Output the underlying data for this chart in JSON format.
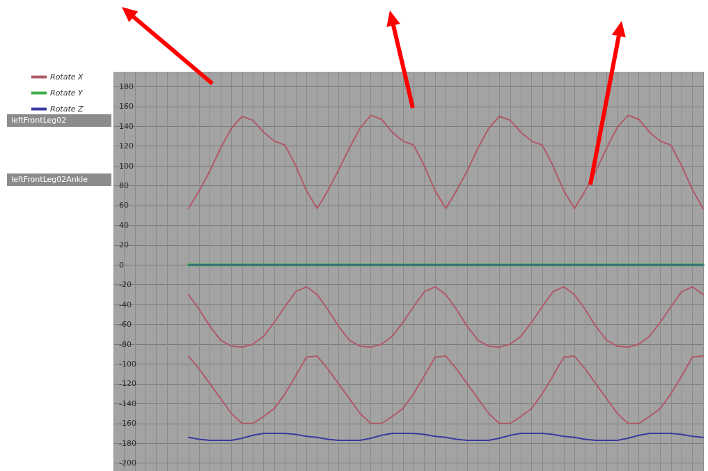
{
  "chart_data": {
    "type": "line",
    "categories": [
      null,
      null,
      null,
      null,
      null,
      null,
      null,
      null,
      null,
      null,
      null,
      null,
      null,
      null,
      null,
      null,
      null,
      null,
      null,
      null,
      null,
      null,
      null,
      null,
      null,
      null,
      null,
      null,
      null,
      null,
      null,
      null,
      null,
      null,
      null,
      null,
      null,
      null,
      null,
      null,
      null,
      null,
      null,
      null,
      null,
      null,
      null,
      null,
      null,
      null,
      null,
      null,
      null,
      null,
      null,
      null
    ],
    "series": [
      {
        "name": "Rotate X",
        "color": "#b05a68",
        "values": [
          null,
          null,
          null,
          null,
          null,
          null,
          null,
          57,
          75,
          95,
          118,
          138,
          150,
          146,
          134,
          125,
          121,
          100,
          75,
          57,
          75,
          96,
          118,
          138,
          151,
          147,
          134,
          125,
          121,
          100,
          75,
          57,
          75,
          95,
          118,
          138,
          150,
          146,
          134,
          125,
          121,
          100,
          75,
          57,
          75,
          95,
          118,
          139,
          151,
          147,
          134,
          125,
          121,
          100,
          76,
          57
        ]
      },
      {
        "color": "#b05a68",
        "values": [
          null,
          null,
          null,
          null,
          null,
          null,
          null,
          -30,
          -45,
          -62,
          -76,
          -82,
          -83,
          -80,
          -72,
          -58,
          -42,
          -27,
          -22,
          -30,
          -45,
          -62,
          -76,
          -82,
          -83,
          -80,
          -72,
          -58,
          -42,
          -27,
          -22,
          -30,
          -45,
          -62,
          -76,
          -82,
          -83,
          -80,
          -72,
          -58,
          -42,
          -27,
          -22,
          -30,
          -45,
          -62,
          -76,
          -82,
          -83,
          -80,
          -72,
          -58,
          -42,
          -27,
          -22,
          -30
        ]
      },
      {
        "color": "#b05a68",
        "values": [
          null,
          null,
          null,
          null,
          null,
          null,
          null,
          -92,
          -105,
          -120,
          -135,
          -150,
          -160,
          -160,
          -153,
          -145,
          -130,
          -112,
          -93,
          -92,
          -105,
          -120,
          -135,
          -150,
          -160,
          -160,
          -153,
          -145,
          -130,
          -112,
          -93,
          -92,
          -105,
          -120,
          -135,
          -150,
          -160,
          -160,
          -153,
          -145,
          -130,
          -112,
          -93,
          -92,
          -105,
          -120,
          -135,
          -150,
          -160,
          -160,
          -153,
          -145,
          -130,
          -112,
          -93,
          -92
        ]
      },
      {
        "name": "Rotate Y",
        "color": "#3fae4a",
        "values": [
          null,
          null,
          null,
          null,
          null,
          null,
          null,
          0,
          0,
          0,
          0,
          0,
          0,
          0,
          0,
          0,
          0,
          0,
          0,
          0,
          0,
          0,
          0,
          0,
          0,
          0,
          0,
          0,
          0,
          0,
          0,
          0,
          0,
          0,
          0,
          0,
          0,
          0,
          0,
          0,
          0,
          0,
          0,
          0,
          0,
          0,
          0,
          0,
          0,
          0,
          0,
          0,
          0,
          0,
          0,
          0
        ]
      },
      {
        "name": "Rotate Z",
        "color": "#3a3aa0",
        "values": [
          null,
          null,
          null,
          null,
          null,
          null,
          null,
          0,
          0,
          0,
          0,
          0,
          0,
          0,
          0,
          0,
          0,
          0,
          0,
          0,
          0,
          0,
          0,
          0,
          0,
          0,
          0,
          0,
          0,
          0,
          0,
          0,
          0,
          0,
          0,
          0,
          0,
          0,
          0,
          0,
          0,
          0,
          0,
          0,
          0,
          0,
          0,
          0,
          0,
          0,
          0,
          0,
          0,
          0,
          0,
          0
        ]
      },
      {
        "color": "#3a3aa0",
        "values": [
          null,
          null,
          null,
          null,
          null,
          null,
          null,
          -174,
          -176,
          -177,
          -177,
          -177,
          -175,
          -172,
          -170,
          -170,
          -170,
          -171,
          -173,
          -174,
          -176,
          -177,
          -177,
          -177,
          -175,
          -172,
          -170,
          -170,
          -170,
          -171,
          -173,
          -174,
          -176,
          -177,
          -177,
          -177,
          -175,
          -172,
          -170,
          -170,
          -170,
          -171,
          -173,
          -174,
          -176,
          -177,
          -177,
          -177,
          -175,
          -172,
          -170,
          -170,
          -170,
          -171,
          -173,
          -174
        ]
      }
    ],
    "ylim": [
      -208,
      195
    ],
    "yticks": [
      180,
      160,
      140,
      120,
      100,
      80,
      60,
      40,
      20,
      0,
      -20,
      -40,
      -60,
      -80,
      -100,
      -120,
      -140,
      -160,
      -180,
      -200
    ],
    "grid": true,
    "legend": "left",
    "marker": "none",
    "line_style": "solid",
    "tick_labels": "y",
    "annotations": [
      "leftFrontLeg02",
      "leftFrontLeg02Ankle"
    ]
  }
}
